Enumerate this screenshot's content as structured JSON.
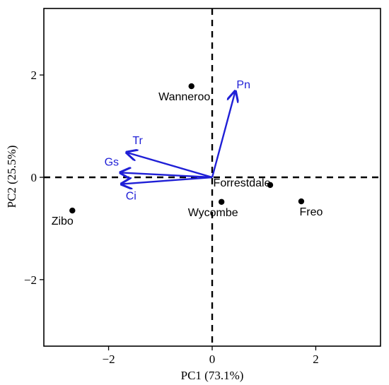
{
  "chart_data": {
    "type": "scatter",
    "xlabel": "PC1 (73.1%)",
    "ylabel": "PC2 (25.5%)",
    "xlim": [
      -3.25,
      3.25
    ],
    "ylim": [
      -3.3,
      3.3
    ],
    "xticks": [
      -2,
      0,
      2
    ],
    "yticks": [
      -2,
      0,
      2
    ],
    "xtick_labels": [
      "−2",
      "0",
      "2"
    ],
    "ytick_labels": [
      "−2",
      "0",
      "2"
    ],
    "grid": false,
    "reference_lines": {
      "x": 0,
      "y": 0,
      "style": "dashed"
    },
    "points": [
      {
        "label": "Wanneroo",
        "x": -0.4,
        "y": 1.78
      },
      {
        "label": "Forrestdale",
        "x": 1.12,
        "y": -0.15
      },
      {
        "label": "Wycombe",
        "x": 0.18,
        "y": -0.48
      },
      {
        "label": "Freo",
        "x": 1.72,
        "y": -0.47
      },
      {
        "label": "Zibo",
        "x": -2.7,
        "y": -0.65
      }
    ],
    "vectors": [
      {
        "label": "Pn",
        "x": 0.44,
        "y": 1.66
      },
      {
        "label": "Tr",
        "x": -1.63,
        "y": 0.48
      },
      {
        "label": "Gs",
        "x": -1.75,
        "y": 0.09
      },
      {
        "label": "Ci",
        "x": -1.73,
        "y": -0.13
      }
    ],
    "colors": {
      "points": "#000000",
      "vectors": "#1f1fd6",
      "axes": "#000000"
    }
  }
}
